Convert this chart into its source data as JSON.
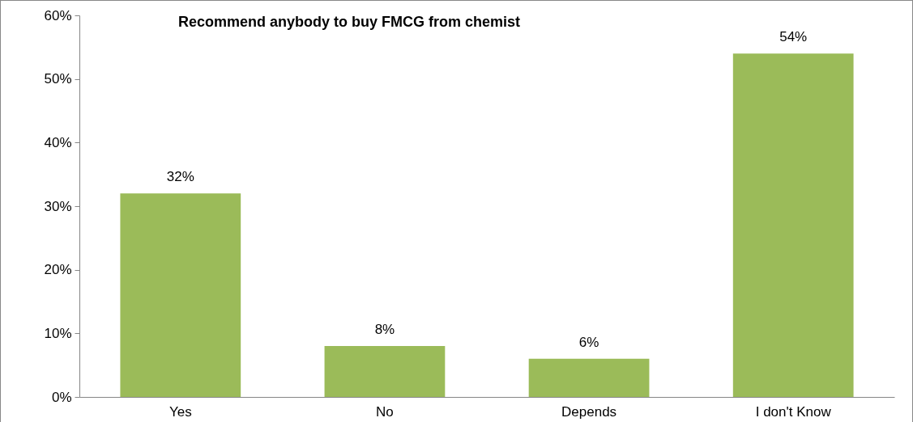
{
  "chart_data": {
    "type": "bar",
    "title": "Recommend anybody to buy FMCG from chemist",
    "categories": [
      "Yes",
      "No",
      "Depends",
      "I don't Know"
    ],
    "values": [
      32,
      8,
      6,
      54
    ],
    "value_labels": [
      "32%",
      "8%",
      "6%",
      "54%"
    ],
    "color": "#9bbb59",
    "ylim": [
      0,
      60
    ],
    "yticks": [
      {
        "value": 0,
        "label": "0%"
      },
      {
        "value": 10,
        "label": "10%"
      },
      {
        "value": 20,
        "label": "20%"
      },
      {
        "value": 30,
        "label": "30%"
      },
      {
        "value": 40,
        "label": "40%"
      },
      {
        "value": 50,
        "label": "50%"
      },
      {
        "value": 60,
        "label": "60%"
      }
    ],
    "grid": false
  }
}
